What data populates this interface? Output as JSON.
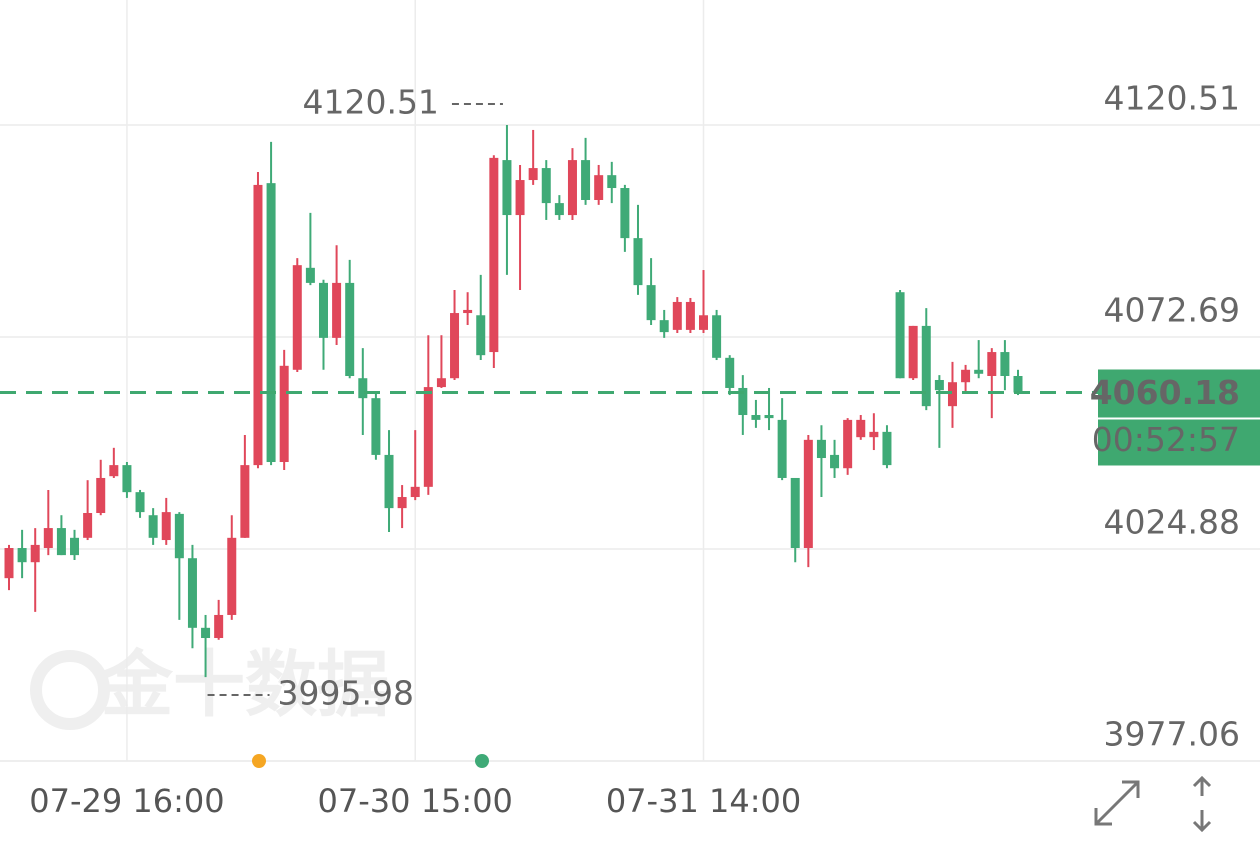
{
  "chart_data": {
    "type": "candlestick",
    "watermark": "金十数据",
    "countdown": "00:52:57",
    "up_color": "#e0475a",
    "down_color": "#3faa77",
    "grid": true,
    "ylim": [
      3977.06,
      4148.71
    ],
    "yticks": [
      3977.06,
      4024.88,
      4072.69,
      4120.51
    ],
    "categories": [
      null,
      null,
      null,
      null,
      null,
      null,
      null,
      null,
      null,
      "07-29 16:00",
      null,
      null,
      null,
      null,
      null,
      null,
      null,
      null,
      null,
      null,
      null,
      null,
      null,
      null,
      null,
      null,
      null,
      null,
      null,
      null,
      null,
      "07-30 15:00",
      null,
      null,
      null,
      null,
      null,
      null,
      null,
      null,
      null,
      null,
      null,
      null,
      null,
      null,
      null,
      null,
      null,
      null,
      null,
      null,
      null,
      "07-31 14:00",
      null,
      null,
      null,
      null,
      null,
      null,
      null,
      null,
      null,
      null,
      null,
      null,
      null,
      null,
      null,
      null,
      null,
      null,
      null,
      null,
      null,
      null,
      null,
      null
    ],
    "open": [
      4018.3,
      4025.1,
      4021.9,
      4025.1,
      4029.6,
      4027.4,
      4027.4,
      4033.0,
      4041.3,
      4043.8,
      4037.7,
      4032.5,
      4026.9,
      4032.8,
      4022.8,
      4007.1,
      4004.8,
      4010.0,
      4027.4,
      4043.8,
      4107.4,
      4044.5,
      4065.3,
      4088.3,
      4084.9,
      4072.5,
      4084.9,
      4063.4,
      4058.9,
      4046.1,
      4034.1,
      4036.6,
      4038.9,
      4061.4,
      4063.4,
      4078.1,
      4077.6,
      4069.3,
      4112.6,
      4100.2,
      4108.1,
      4110.8,
      4102.9,
      4100.2,
      4112.6,
      4103.6,
      4109.2,
      4106.3,
      4095.0,
      4084.4,
      4076.5,
      4074.3,
      4074.3,
      4074.3,
      4077.6,
      4068.0,
      4061.2,
      4055.1,
      4055.1,
      4054.0,
      4040.9,
      4025.1,
      4049.5,
      4046.1,
      4043.1,
      4050.1,
      4050.1,
      4051.3,
      4082.8,
      4063.4,
      4075.2,
      4063.0,
      4057.1,
      4062.5,
      4065.3,
      4063.9,
      4069.3,
      4063.9
    ],
    "high": [
      4025.8,
      4029.2,
      4029.6,
      4038.2,
      4032.5,
      4029.2,
      4040.4,
      4045.0,
      4047.7,
      4044.5,
      4038.2,
      4034.1,
      4036.4,
      4033.2,
      4025.8,
      4010.0,
      4013.4,
      4032.5,
      4050.6,
      4109.9,
      4116.7,
      4069.8,
      4090.5,
      4100.7,
      4085.6,
      4093.4,
      4090.1,
      4070.2,
      4060.3,
      4051.7,
      4039.3,
      4051.7,
      4073.1,
      4073.1,
      4083.3,
      4082.8,
      4086.7,
      4113.7,
      4120.51,
      4111.5,
      4119.4,
      4112.6,
      4104.7,
      4115.3,
      4117.6,
      4111.5,
      4112.2,
      4107.0,
      4102.5,
      4090.5,
      4078.8,
      4081.7,
      4081.5,
      4087.8,
      4078.8,
      4068.6,
      4064.1,
      4058.5,
      4061.2,
      4058.9,
      4040.9,
      4050.6,
      4052.8,
      4049.5,
      4054.4,
      4055.1,
      4055.5,
      4052.8,
      4083.3,
      4075.2,
      4079.2,
      4064.1,
      4067.1,
      4066.4,
      4072.0,
      4070.2,
      4072.0,
      4065.3
    ],
    "low": [
      4015.6,
      4018.3,
      4010.7,
      4023.5,
      4023.5,
      4022.4,
      4026.9,
      4032.5,
      4040.9,
      4036.4,
      4031.9,
      4025.8,
      4025.8,
      4008.9,
      4002.5,
      3995.98,
      4004.4,
      4008.9,
      4027.4,
      4043.1,
      4043.8,
      4042.7,
      4064.8,
      4084.4,
      4065.3,
      4070.9,
      4063.4,
      4050.6,
      4045.0,
      4028.7,
      4029.6,
      4035.9,
      4037.1,
      4061.2,
      4063.0,
      4075.4,
      4067.5,
      4065.7,
      4086.7,
      4083.3,
      4107.0,
      4099.1,
      4099.1,
      4099.1,
      4102.5,
      4102.5,
      4102.9,
      4091.9,
      4082.2,
      4075.4,
      4072.5,
      4073.6,
      4073.6,
      4073.6,
      4067.5,
      4059.6,
      4050.6,
      4052.2,
      4051.7,
      4040.4,
      4021.9,
      4020.8,
      4036.6,
      4040.9,
      4041.6,
      4049.5,
      4047.2,
      4043.1,
      4063.4,
      4063.0,
      4056.2,
      4047.7,
      4052.2,
      4060.3,
      4063.4,
      4054.4,
      4060.7,
      4059.6
    ],
    "close": [
      4025.1,
      4021.9,
      4025.8,
      4029.6,
      4023.5,
      4023.5,
      4033.0,
      4040.9,
      4043.8,
      4037.7,
      4033.2,
      4027.4,
      4033.2,
      4022.8,
      4007.1,
      4004.8,
      4010.0,
      4027.4,
      4043.8,
      4107.0,
      4044.5,
      4066.2,
      4088.9,
      4084.9,
      4072.5,
      4084.9,
      4063.9,
      4058.9,
      4046.1,
      4034.1,
      4036.6,
      4038.9,
      4061.4,
      4063.4,
      4078.1,
      4078.8,
      4068.6,
      4113.1,
      4100.2,
      4108.1,
      4110.8,
      4102.9,
      4100.2,
      4112.6,
      4103.6,
      4109.2,
      4106.3,
      4095.0,
      4084.4,
      4076.5,
      4073.8,
      4080.6,
      4080.6,
      4077.6,
      4068.0,
      4061.2,
      4055.1,
      4054.0,
      4054.4,
      4040.9,
      4025.1,
      4049.5,
      4045.4,
      4043.1,
      4054.0,
      4054.0,
      4051.3,
      4043.8,
      4063.4,
      4075.2,
      4057.1,
      4060.7,
      4062.5,
      4065.3,
      4064.4,
      4069.3,
      4063.9,
      4060.18
    ]
  }
}
